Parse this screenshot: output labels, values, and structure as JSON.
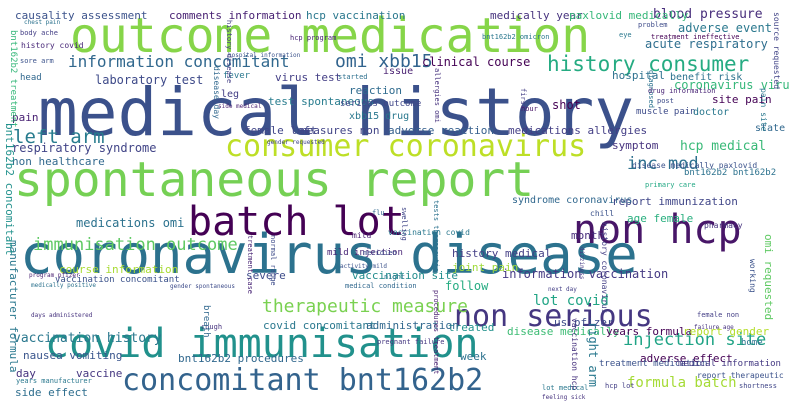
{
  "words": [
    {
      "text": "medical history",
      "color": "#3b518b"
    },
    {
      "text": "coronavirus disease",
      "color": "#2c728e"
    },
    {
      "text": "outcome medication",
      "color": "#86d549"
    },
    {
      "text": "spontaneous report",
      "color": "#75d054"
    },
    {
      "text": "batch lot",
      "color": "#440154"
    },
    {
      "text": "non hcp",
      "color": "#481668"
    },
    {
      "text": "covid immunisation",
      "color": "#21918c"
    },
    {
      "text": "concomitant bnt162b2",
      "color": "#33638d"
    },
    {
      "text": "consumer coronavirus",
      "color": "#bddf26"
    },
    {
      "text": "non serious",
      "color": "#453781"
    },
    {
      "text": "information concomitant",
      "color": "#31688e"
    },
    {
      "text": "history consumer",
      "color": "#25ab82"
    },
    {
      "text": "omi xbb15",
      "color": "#32648e"
    },
    {
      "text": "left arm",
      "color": "#287c8e"
    },
    {
      "text": "inc mod",
      "color": "#2d708e"
    },
    {
      "text": "hcp medical",
      "color": "#38b977"
    },
    {
      "text": "immunisation outcome",
      "color": "#5ec962"
    },
    {
      "text": "therapeutic measure",
      "color": "#7ad151"
    },
    {
      "text": "vaccination history",
      "color": "#2a788e"
    },
    {
      "text": "injection site",
      "color": "#20a486"
    },
    {
      "text": "formula batch",
      "color": "#a5db36"
    },
    {
      "text": "lot covid",
      "color": "#21a585"
    },
    {
      "text": "clinical course",
      "color": "#440154"
    },
    {
      "text": "laboratory test",
      "color": "#3e4a89"
    },
    {
      "text": "respiratory syndrome",
      "color": "#414487"
    },
    {
      "text": "non healthcare",
      "color": "#31688e"
    },
    {
      "text": "medications omi",
      "color": "#2c728e"
    },
    {
      "text": "course information",
      "color": "#a8db34"
    },
    {
      "text": "vaccination concomitant",
      "color": "#3b528b"
    },
    {
      "text": "blood pressure",
      "color": "#472d7b"
    },
    {
      "text": "adverse event",
      "color": "#2a788e"
    },
    {
      "text": "acute respiratory",
      "color": "#2e6e8e"
    },
    {
      "text": "coronavirus virus",
      "color": "#35b779"
    },
    {
      "text": "site pain",
      "color": "#440154"
    },
    {
      "text": "symptom",
      "color": "#46327e"
    },
    {
      "text": "report immunization",
      "color": "#404688"
    },
    {
      "text": "age female",
      "color": "#29af7f"
    },
    {
      "text": "information vaccination",
      "color": "#443983"
    },
    {
      "text": "syndrome coronavirus",
      "color": "#31688e"
    },
    {
      "text": "history medical",
      "color": "#433e85"
    },
    {
      "text": "joint pain",
      "color": "#9fda3a"
    },
    {
      "text": "us pfizer",
      "color": "#3e4c8a"
    },
    {
      "text": "vaccination site",
      "color": "#228c8d"
    },
    {
      "text": "follow",
      "color": "#25ac82"
    },
    {
      "text": "treated",
      "color": "#21918c"
    },
    {
      "text": "week",
      "color": "#2c728e"
    },
    {
      "text": "disease medically",
      "color": "#3dbc74"
    },
    {
      "text": "years formula",
      "color": "#440154"
    },
    {
      "text": "report gender",
      "color": "#b5de2b"
    },
    {
      "text": "covid concomitant",
      "color": "#2a788e"
    },
    {
      "text": "administration",
      "color": "#31688e"
    },
    {
      "text": "adverse effect",
      "color": "#440154"
    },
    {
      "text": "nausea vomiting",
      "color": "#39558c"
    },
    {
      "text": "vaccine",
      "color": "#453781"
    },
    {
      "text": "day",
      "color": "#46327e"
    },
    {
      "text": "side effect",
      "color": "#2e6e8e"
    },
    {
      "text": "causality assessment",
      "color": "#3b528b"
    },
    {
      "text": "comments information",
      "color": "#482173"
    },
    {
      "text": "hcp vaccination",
      "color": "#2a788e"
    },
    {
      "text": "medically year",
      "color": "#46327e"
    },
    {
      "text": "paxlovid medically",
      "color": "#35b779"
    },
    {
      "text": "virus test",
      "color": "#433e85"
    },
    {
      "text": "shot",
      "color": "#440154"
    },
    {
      "text": "hospital",
      "color": "#2d708e"
    },
    {
      "text": "reaction",
      "color": "#2f6b8e"
    },
    {
      "text": "measures non",
      "color": "#414487"
    },
    {
      "text": "adverse reaction",
      "color": "#355f8d"
    },
    {
      "text": "medications allergies",
      "color": "#433e85"
    },
    {
      "text": "female left",
      "color": "#404688"
    },
    {
      "text": "test spontaneous",
      "color": "#287c8e"
    },
    {
      "text": "xbb15 drug",
      "color": "#2a788e"
    },
    {
      "text": "pain",
      "color": "#482173"
    },
    {
      "text": "month",
      "color": "#472d7b"
    },
    {
      "text": "mild injection",
      "color": "#482576"
    },
    {
      "text": "bnt162b2 procedures",
      "color": "#31688e"
    },
    {
      "text": "treatment medication",
      "color": "#3b528b"
    },
    {
      "text": "medical information",
      "color": "#443983"
    },
    {
      "text": "muscle pain",
      "color": "#3e4c8a"
    },
    {
      "text": "doctor",
      "color": "#2a788e"
    },
    {
      "text": "benefit risk",
      "color": "#2c728e"
    },
    {
      "text": "issue",
      "color": "#481f70"
    },
    {
      "text": "fever",
      "color": "#2a788e"
    },
    {
      "text": "hcp program",
      "color": "#482475"
    },
    {
      "text": "history covid",
      "color": "#482878"
    },
    {
      "text": "head",
      "color": "#31688e"
    },
    {
      "text": "leg",
      "color": "#433e85"
    },
    {
      "text": "disease medically paxlovid",
      "color": "#3b528b"
    },
    {
      "text": "primary care",
      "color": "#22a884"
    },
    {
      "text": "pharmacy",
      "color": "#46327e"
    },
    {
      "text": "state",
      "color": "#31688e"
    },
    {
      "text": "home",
      "color": "#2c728e"
    },
    {
      "text": "failure age",
      "color": "#46327e"
    },
    {
      "text": "report therapeutic",
      "color": "#3b528b"
    },
    {
      "text": "female non",
      "color": "#433e85"
    },
    {
      "text": "vaccination covid",
      "color": "#2a788e"
    },
    {
      "text": "mild",
      "color": "#481f70"
    },
    {
      "text": "severe",
      "color": "#3e4c8a"
    },
    {
      "text": "started",
      "color": "#2d708e"
    },
    {
      "text": "serious outcome",
      "color": "#404688"
    },
    {
      "text": "hour",
      "color": "#481668"
    },
    {
      "text": "flu",
      "color": "#31688e"
    },
    {
      "text": "chill",
      "color": "#3b528b"
    },
    {
      "text": "next day",
      "color": "#433e85"
    },
    {
      "text": "pregnant failure",
      "color": "#453781"
    },
    {
      "text": "cough",
      "color": "#46327e"
    },
    {
      "text": "night",
      "color": "#2a788e"
    },
    {
      "text": "problem",
      "color": "#3e4c8a"
    },
    {
      "text": "treatment ineffective",
      "color": "#440154"
    },
    {
      "text": "eye",
      "color": "#2a788e"
    },
    {
      "text": "bnt162b2 bnt162b2",
      "color": "#2c728e"
    },
    {
      "text": "bnt162b2 treatment",
      "color": "#35b779"
    },
    {
      "text": "manufacturer formula",
      "color": "#2a788e"
    },
    {
      "text": "bnt162b2 concomitant",
      "color": "#21918c"
    },
    {
      "text": "omi requested",
      "color": "#5ec962"
    },
    {
      "text": "right arm",
      "color": "#2a788e"
    },
    {
      "text": "history coronavirus",
      "color": "#433e85"
    },
    {
      "text": "vaccination hcp",
      "color": "#46327e"
    },
    {
      "text": "working",
      "color": "#3b528b"
    },
    {
      "text": "breath",
      "color": "#31688e"
    },
    {
      "text": "dizziness",
      "color": "#443983"
    },
    {
      "text": "pain site",
      "color": "#2a788e"
    },
    {
      "text": "source requested",
      "color": "#414487"
    },
    {
      "text": "tests therapeutic",
      "color": "#2c728e"
    },
    {
      "text": "treatment case",
      "color": "#482475"
    },
    {
      "text": "normal range",
      "color": "#3e4c8a"
    },
    {
      "text": "swelling",
      "color": "#404688"
    },
    {
      "text": "procedures treatment",
      "color": "#481f70"
    },
    {
      "text": "diagnosed",
      "color": "#2c728e"
    },
    {
      "text": "first",
      "color": "#433e85"
    },
    {
      "text": "bnt162b2 omicron",
      "color": "#2a788e"
    },
    {
      "text": "allergies omi",
      "color": "#46327e"
    },
    {
      "text": "post",
      "color": "#3e4c8a"
    },
    {
      "text": "chest pain",
      "color": "#2c728e"
    },
    {
      "text": "body ache",
      "color": "#433e85"
    },
    {
      "text": "sore arm",
      "color": "#3b528b"
    },
    {
      "text": "side medical",
      "color": "#481f70"
    },
    {
      "text": "medical condition",
      "color": "#31688e"
    },
    {
      "text": "meridien",
      "color": "#3e4c8a"
    },
    {
      "text": "lot medical",
      "color": "#2a788e"
    },
    {
      "text": "feeling sick",
      "color": "#46327e"
    },
    {
      "text": "hcp lot",
      "color": "#433e85"
    },
    {
      "text": "shortness",
      "color": "#404688"
    },
    {
      "text": "drug information",
      "color": "#482475"
    },
    {
      "text": "hospital information",
      "color": "#3b528b"
    },
    {
      "text": "medically positive",
      "color": "#2c728e"
    },
    {
      "text": "gender spontaneous",
      "color": "#3e4c8a"
    },
    {
      "text": "program pfizer",
      "color": "#481f70"
    },
    {
      "text": "days administered",
      "color": "#46327e"
    },
    {
      "text": "years manufacturer",
      "color": "#2a788e"
    },
    {
      "text": "history disease",
      "color": "#433e85"
    },
    {
      "text": "activity mild",
      "color": "#3b528b"
    },
    {
      "text": "disease day",
      "color": "#31688e"
    },
    {
      "text": "gender requested",
      "color": "#404688"
    }
  ]
}
